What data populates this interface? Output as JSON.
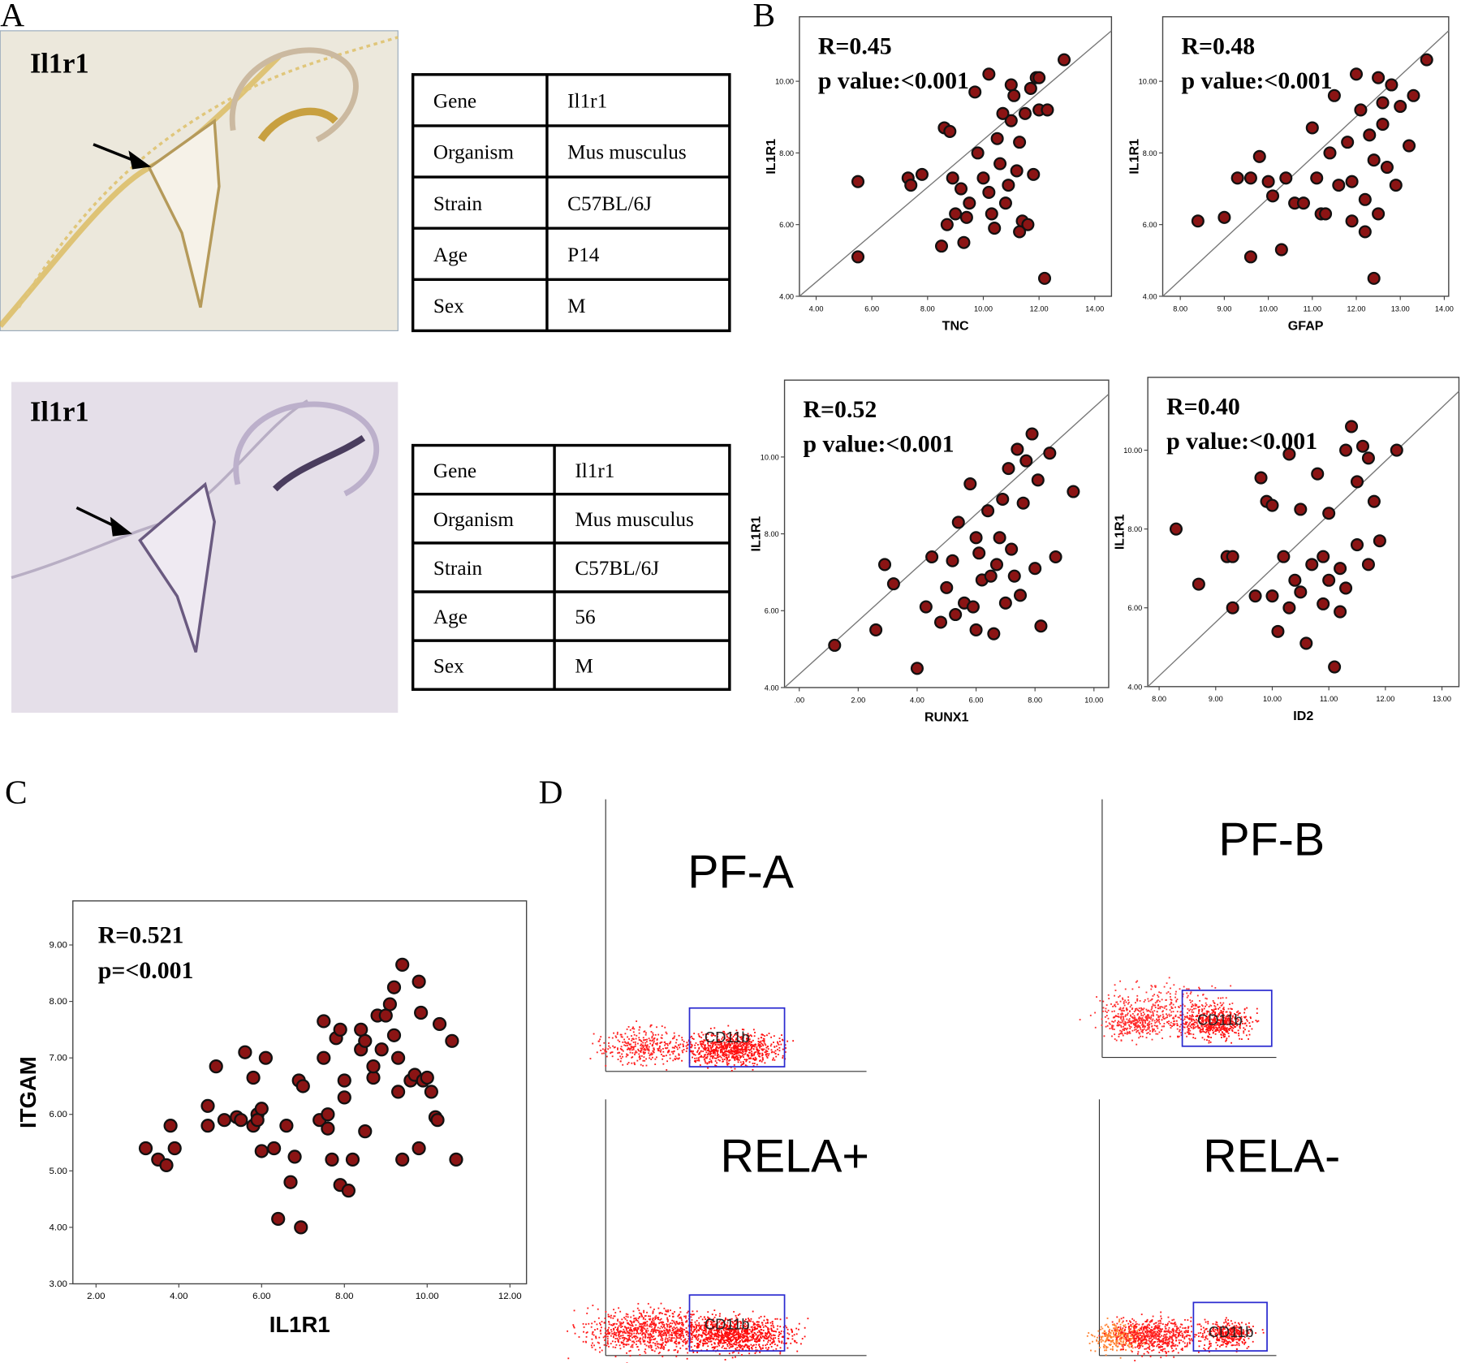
{
  "panels": [
    "A",
    "B",
    "C",
    "D"
  ],
  "panel_a": {
    "images": [
      {
        "label": "Il1r1"
      },
      {
        "label": "Il1r1"
      }
    ],
    "tables": [
      {
        "rows": [
          [
            "Gene",
            "Il1r1"
          ],
          [
            "Organism",
            "Mus musculus"
          ],
          [
            "Strain",
            "C57BL/6J"
          ],
          [
            "Age",
            "P14"
          ],
          [
            "Sex",
            "M"
          ]
        ]
      },
      {
        "rows": [
          [
            "Gene",
            "Il1r1"
          ],
          [
            "Organism",
            "Mus musculus"
          ],
          [
            "Strain",
            "C57BL/6J"
          ],
          [
            "Age",
            "56"
          ],
          [
            "Sex",
            "M"
          ]
        ]
      }
    ]
  },
  "chart_data": [
    {
      "type": "scatter",
      "annotations": [
        "R=0.45",
        "p value:<0.001"
      ],
      "xlabel": "TNC",
      "ylabel": "IL1R1",
      "color": "#8b1414",
      "fit_line": true,
      "x": [
        5.5,
        5.5,
        7.3,
        7.4,
        7.8,
        8.6,
        8.8,
        8.5,
        8.7,
        9.0,
        9.3,
        9.5,
        9.7,
        10.2,
        10.0,
        10.2,
        10.4,
        10.5,
        10.6,
        10.8,
        11.0,
        11.1,
        11.2,
        11.3,
        11.4,
        11.5,
        11.7,
        11.9,
        12.0,
        12.2,
        12.3,
        12.9,
        11.6,
        10.9,
        9.2,
        9.8,
        10.3,
        11.0,
        11.8,
        9.4,
        8.9,
        10.7,
        11.3,
        12.0
      ],
      "y": [
        5.1,
        7.2,
        7.3,
        7.1,
        7.4,
        8.7,
        8.6,
        5.4,
        6.0,
        6.3,
        5.5,
        6.6,
        9.7,
        10.2,
        7.3,
        6.9,
        5.9,
        8.4,
        7.7,
        6.6,
        9.9,
        9.6,
        7.5,
        8.3,
        6.1,
        9.1,
        9.8,
        10.1,
        9.2,
        4.5,
        9.2,
        10.6,
        6.0,
        7.1,
        7.0,
        8.0,
        6.3,
        8.9,
        7.4,
        6.2,
        7.3,
        9.1,
        5.8,
        10.1
      ],
      "xlim": [
        3.4,
        14.6
      ],
      "ylim": [
        4,
        11.8
      ],
      "xticks": [
        {
          "value": 4,
          "label": "4.00"
        },
        {
          "value": 6,
          "label": "6.00"
        },
        {
          "value": 8,
          "label": "8.00"
        },
        {
          "value": 10,
          "label": "10.00"
        },
        {
          "value": 12,
          "label": "12.00"
        },
        {
          "value": 14,
          "label": "14.00"
        }
      ],
      "yticks": [
        {
          "value": 4,
          "label": "4.00"
        },
        {
          "value": 6,
          "label": "6.00"
        },
        {
          "value": 8,
          "label": "8.00"
        },
        {
          "value": 10,
          "label": "10.00"
        }
      ]
    },
    {
      "type": "scatter",
      "annotations": [
        "R=0.48",
        "p value:<0.001"
      ],
      "xlabel": "GFAP",
      "ylabel": "IL1R1",
      "color": "#8b1414",
      "fit_line": true,
      "x": [
        8.4,
        9.0,
        9.3,
        9.6,
        9.6,
        9.8,
        10.1,
        10.3,
        10.4,
        10.6,
        10.8,
        11.0,
        11.1,
        11.2,
        11.4,
        11.5,
        11.6,
        11.8,
        11.9,
        12.0,
        12.1,
        12.2,
        12.3,
        12.4,
        12.5,
        12.5,
        12.6,
        12.7,
        12.8,
        12.9,
        13.2,
        13.3,
        13.6,
        12.4,
        11.9,
        12.2,
        11.3,
        10.0,
        12.6,
        13.0
      ],
      "y": [
        6.1,
        6.2,
        7.3,
        7.3,
        5.1,
        7.9,
        6.8,
        5.3,
        7.3,
        6.6,
        6.6,
        8.7,
        7.3,
        6.3,
        8.0,
        9.6,
        7.1,
        8.3,
        6.1,
        10.2,
        9.2,
        5.8,
        8.5,
        4.5,
        10.1,
        6.3,
        9.4,
        7.6,
        9.9,
        7.1,
        8.2,
        9.6,
        10.6,
        7.8,
        7.2,
        6.7,
        6.3,
        7.2,
        8.8,
        9.3
      ],
      "xlim": [
        7.6,
        14.1
      ],
      "ylim": [
        4,
        11.8
      ],
      "xticks": [
        {
          "value": 8,
          "label": "8.00"
        },
        {
          "value": 9,
          "label": "9.00"
        },
        {
          "value": 10,
          "label": "10.00"
        },
        {
          "value": 11,
          "label": "11.00"
        },
        {
          "value": 12,
          "label": "12.00"
        },
        {
          "value": 13,
          "label": "13.00"
        },
        {
          "value": 14,
          "label": "14.00"
        }
      ],
      "yticks": [
        {
          "value": 4,
          "label": "4.00"
        },
        {
          "value": 6,
          "label": "6.00"
        },
        {
          "value": 8,
          "label": "8.00"
        },
        {
          "value": 10,
          "label": "10.00"
        }
      ]
    },
    {
      "type": "scatter",
      "annotations": [
        "R=0.52",
        "p value:<0.001"
      ],
      "xlabel": "RUNX1",
      "ylabel": "IL1R1",
      "color": "#8b1414",
      "fit_line": true,
      "x": [
        1.2,
        2.6,
        2.9,
        3.2,
        4.0,
        4.3,
        4.5,
        4.8,
        5.0,
        5.2,
        5.4,
        5.6,
        5.8,
        6.0,
        6.0,
        6.2,
        6.4,
        6.6,
        6.7,
        6.9,
        7.0,
        7.1,
        7.2,
        7.4,
        7.5,
        7.6,
        7.7,
        7.9,
        8.0,
        8.1,
        8.2,
        8.5,
        8.7,
        9.3,
        6.5,
        5.9,
        6.8,
        7.3,
        5.3,
        6.1
      ],
      "y": [
        5.1,
        5.5,
        7.2,
        6.7,
        4.5,
        6.1,
        7.4,
        5.7,
        6.6,
        7.3,
        8.3,
        6.2,
        9.3,
        7.9,
        5.5,
        6.8,
        8.6,
        5.4,
        7.2,
        8.9,
        6.2,
        9.7,
        7.6,
        10.2,
        6.4,
        8.8,
        9.9,
        10.6,
        7.1,
        9.4,
        5.6,
        10.1,
        7.4,
        9.1,
        6.9,
        6.1,
        7.9,
        6.9,
        5.9,
        7.5
      ],
      "xlim": [
        -0.5,
        10.5
      ],
      "ylim": [
        4,
        12
      ],
      "xticks": [
        {
          "value": 0,
          "label": ".00"
        },
        {
          "value": 2,
          "label": "2.00"
        },
        {
          "value": 4,
          "label": "4.00"
        },
        {
          "value": 6,
          "label": "6.00"
        },
        {
          "value": 8,
          "label": "8.00"
        },
        {
          "value": 10,
          "label": "10.00"
        }
      ],
      "yticks": [
        {
          "value": 4,
          "label": "4.00"
        },
        {
          "value": 6,
          "label": "6.00"
        },
        {
          "value": 8,
          "label": "8.00"
        },
        {
          "value": 10,
          "label": "10.00"
        }
      ]
    },
    {
      "type": "scatter",
      "annotations": [
        "R=0.40",
        "p value:<0.001"
      ],
      "xlabel": "ID2",
      "ylabel": "IL1R1",
      "color": "#8b1414",
      "fit_line": true,
      "x": [
        8.3,
        8.7,
        9.2,
        9.3,
        9.3,
        9.7,
        9.8,
        9.9,
        10.0,
        10.1,
        10.2,
        10.3,
        10.4,
        10.5,
        10.6,
        10.7,
        10.8,
        10.9,
        11.0,
        11.1,
        11.2,
        11.3,
        11.3,
        11.4,
        11.5,
        11.5,
        11.6,
        11.7,
        11.8,
        11.9,
        12.2,
        10.5,
        10.9,
        11.2,
        10.0,
        11.7,
        10.3,
        11.0
      ],
      "y": [
        8.0,
        6.6,
        7.3,
        6.0,
        7.3,
        6.3,
        9.3,
        8.7,
        6.3,
        5.4,
        7.3,
        9.9,
        6.7,
        8.5,
        5.1,
        7.1,
        9.4,
        6.1,
        8.4,
        4.5,
        7.0,
        10.0,
        6.5,
        10.6,
        9.2,
        7.6,
        10.1,
        9.8,
        8.7,
        7.7,
        10.0,
        6.4,
        7.3,
        5.9,
        8.6,
        7.1,
        6.0,
        6.7
      ],
      "xlim": [
        7.8,
        13.3
      ],
      "ylim": [
        4,
        11.85
      ],
      "xticks": [
        {
          "value": 8,
          "label": "8.00"
        },
        {
          "value": 9,
          "label": "9.00"
        },
        {
          "value": 10,
          "label": "10.00"
        },
        {
          "value": 11,
          "label": "11.00"
        },
        {
          "value": 12,
          "label": "12.00"
        },
        {
          "value": 13,
          "label": "13.00"
        }
      ],
      "yticks": [
        {
          "value": 4,
          "label": "4.00"
        },
        {
          "value": 6,
          "label": "6.00"
        },
        {
          "value": 8,
          "label": "8.00"
        },
        {
          "value": 10,
          "label": "10.00"
        }
      ]
    },
    {
      "type": "scatter",
      "annotations": [
        "R=0.521",
        "p=<0.001"
      ],
      "xlabel": "IL1R1",
      "ylabel": "ITGAM",
      "color": "#8b1414",
      "fit_line": false,
      "x": [
        3.2,
        3.5,
        3.7,
        3.8,
        3.9,
        4.7,
        4.7,
        4.9,
        5.1,
        5.4,
        5.5,
        5.6,
        5.8,
        5.8,
        5.9,
        5.9,
        6.0,
        6.0,
        6.1,
        6.3,
        6.4,
        6.6,
        6.7,
        6.8,
        6.9,
        6.95,
        7.0,
        7.4,
        7.5,
        7.5,
        7.6,
        7.6,
        7.7,
        7.8,
        7.9,
        7.9,
        8.0,
        8.0,
        8.1,
        8.2,
        8.4,
        8.4,
        8.5,
        8.5,
        8.7,
        8.7,
        8.8,
        8.9,
        9.0,
        9.1,
        9.2,
        9.2,
        9.3,
        9.3,
        9.4,
        9.4,
        9.6,
        9.7,
        9.8,
        9.8,
        9.85,
        9.9,
        10.0,
        10.1,
        10.2,
        10.25,
        10.3,
        10.6,
        10.7
      ],
      "y": [
        5.4,
        5.2,
        5.1,
        5.8,
        5.4,
        6.15,
        5.8,
        6.85,
        5.9,
        5.95,
        5.9,
        7.1,
        6.65,
        5.8,
        6.0,
        5.9,
        6.1,
        5.35,
        7.0,
        5.4,
        4.15,
        5.8,
        4.8,
        5.25,
        6.6,
        4.0,
        6.5,
        5.9,
        7.0,
        7.65,
        6.0,
        5.75,
        5.2,
        7.35,
        7.5,
        4.75,
        6.6,
        6.3,
        4.65,
        5.2,
        7.5,
        7.15,
        5.7,
        7.3,
        6.65,
        6.85,
        7.75,
        7.15,
        7.75,
        7.95,
        7.4,
        8.25,
        7.0,
        6.4,
        5.2,
        8.65,
        6.6,
        6.7,
        5.4,
        8.35,
        7.8,
        6.6,
        6.65,
        6.4,
        5.95,
        5.9,
        7.6,
        7.3,
        5.2
      ],
      "xlim": [
        1.44,
        12.4
      ],
      "ylim": [
        3,
        9.78
      ],
      "xticks": [
        {
          "value": 2,
          "label": "2.00"
        },
        {
          "value": 4,
          "label": "4.00"
        },
        {
          "value": 6,
          "label": "6.00"
        },
        {
          "value": 8,
          "label": "8.00"
        },
        {
          "value": 10,
          "label": "10.00"
        },
        {
          "value": 12,
          "label": "12.00"
        }
      ],
      "yticks": [
        {
          "value": 3,
          "label": "3.00"
        },
        {
          "value": 4,
          "label": "4.00"
        },
        {
          "value": 5,
          "label": "5.00"
        },
        {
          "value": 6,
          "label": "6.00"
        },
        {
          "value": 7,
          "label": "7.00"
        },
        {
          "value": 8,
          "label": "8.00"
        },
        {
          "value": 9,
          "label": "9.00"
        }
      ]
    }
  ],
  "panel_d": {
    "plots": [
      {
        "title": "PF-A",
        "gate": "CD11b"
      },
      {
        "title": "PF-B",
        "gate": "CD11b"
      },
      {
        "title": "RELA+",
        "gate": "CD11b"
      },
      {
        "title": "RELA-",
        "gate": "CD11b"
      }
    ]
  }
}
